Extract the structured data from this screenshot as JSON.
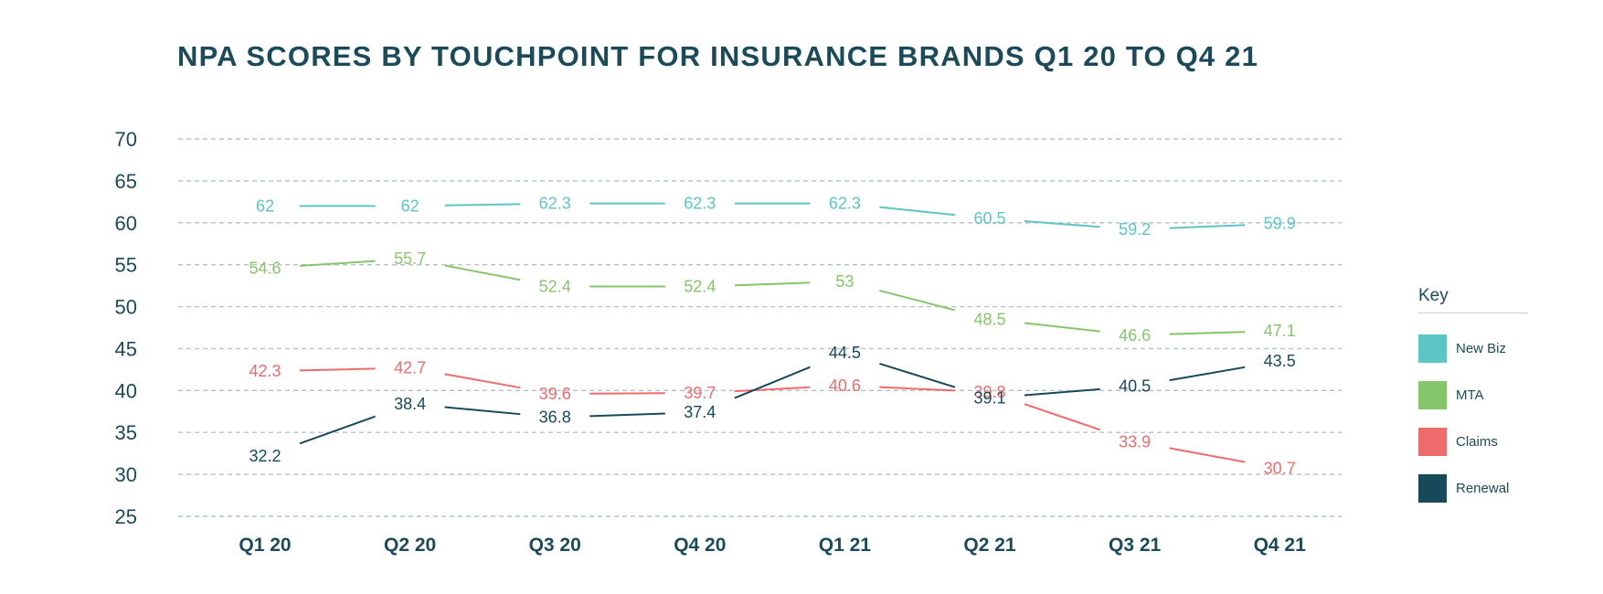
{
  "chart_data": {
    "type": "line",
    "title": "NPA SCORES BY TOUCHPOINT FOR INSURANCE BRANDS Q1 20 TO Q4 21",
    "categories": [
      "Q1 20",
      "Q2 20",
      "Q3 20",
      "Q4 20",
      "Q1 21",
      "Q2 21",
      "Q3 21",
      "Q4 21"
    ],
    "ylim": [
      25,
      70
    ],
    "yticks": [
      70,
      65,
      60,
      55,
      50,
      45,
      40,
      35,
      30,
      25
    ],
    "grid": "dashed-horizontal",
    "legend_title": "Key",
    "legend_placement": "right",
    "series": [
      {
        "name": "New Biz",
        "color": "#5cc5c6",
        "values": [
          62,
          62,
          62.3,
          62.3,
          62.3,
          60.5,
          59.2,
          59.9
        ]
      },
      {
        "name": "MTA",
        "color": "#86c66a",
        "values": [
          54.6,
          55.7,
          52.4,
          52.4,
          53,
          48.5,
          46.6,
          47.1
        ]
      },
      {
        "name": "Claims",
        "color": "#ee6b6b",
        "values": [
          42.3,
          42.7,
          39.6,
          39.7,
          40.6,
          39.8,
          33.9,
          30.7
        ]
      },
      {
        "name": "Renewal",
        "color": "#164a5b",
        "values": [
          32.2,
          38.4,
          36.8,
          37.4,
          44.5,
          39.1,
          40.5,
          43.5
        ]
      }
    ]
  }
}
